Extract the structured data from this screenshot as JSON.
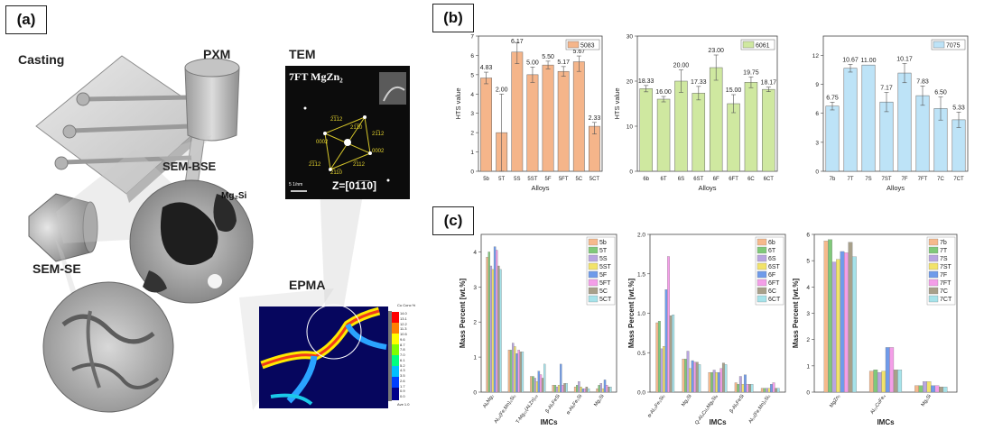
{
  "panel_labels": {
    "a": "(a)",
    "b": "(b)",
    "c": "(c)"
  },
  "panel_a": {
    "casting": "Casting",
    "pxm": "PXM",
    "tem": "TEM",
    "sem_bse": "SEM-BSE",
    "sem_se": "SEM-SE",
    "epma": "EPMA",
    "tem_title": "7FT MgZn₂",
    "tem_zone_axis": "Z=[01̅1̅0]",
    "tem_scale": "5 1/nm",
    "tem_spots": [
      "2̅1̅12",
      "21̅1̅0",
      "21̅12",
      "0002",
      "0002",
      "2̅1̅12",
      "2̅11̅0",
      "2̅112"
    ],
    "bse_phase": "Mg₂Si",
    "epma_colorbar_title": "Cu Conc %",
    "epma_colorbar_ticks": [
      "14.0",
      "13.1",
      "12.2",
      "11.3",
      "10.5",
      "9.6",
      "8.7",
      "7.8",
      "7.0",
      "6.1",
      "5.2",
      "4.3",
      "3.5",
      "2.6",
      "1.7",
      "0.9",
      "0.0"
    ],
    "epma_colorbar_avg": "Ave 1.0"
  },
  "chart_data": [
    {
      "type": "bar",
      "panel": "b",
      "legend": "5083",
      "color": "#f5b58a",
      "categories": [
        "5b",
        "5T",
        "5S",
        "5ST",
        "5F",
        "5FT",
        "5C",
        "5CT"
      ],
      "values": [
        4.83,
        2.0,
        6.17,
        5.0,
        5.5,
        5.17,
        5.67,
        2.33
      ],
      "value_labels": [
        "4.83",
        "2.00",
        "6.17",
        "5.00",
        "5.50",
        "5.17",
        "5.67",
        "2.33"
      ],
      "err_plus": [
        0.3,
        2.0,
        0.5,
        0.4,
        0.2,
        0.25,
        0.3,
        0.2
      ],
      "err_minus": [
        0.3,
        2.0,
        0.6,
        0.4,
        0.2,
        0.25,
        0.5,
        0.4
      ],
      "ylim": [
        0,
        7
      ],
      "yticks": [
        "0",
        "1",
        "2",
        "3",
        "4",
        "5",
        "6",
        "7"
      ],
      "ylabel": "HTS value",
      "xlabel": "Alloys"
    },
    {
      "type": "bar",
      "panel": "b",
      "legend": "6061",
      "color": "#cfe8a0",
      "categories": [
        "6b",
        "6T",
        "6S",
        "6ST",
        "6F",
        "6FT",
        "6C",
        "6CT"
      ],
      "values": [
        18.33,
        16.0,
        20.0,
        17.33,
        23.0,
        15.0,
        19.75,
        18.17
      ],
      "value_labels": [
        "18.33",
        "16.00",
        "20.00",
        "17.33",
        "23.00",
        "15.00",
        "19.75",
        "18.17"
      ],
      "err_plus": [
        0.7,
        0.6,
        2.5,
        1.5,
        2.8,
        2.0,
        1.2,
        0.5
      ],
      "err_minus": [
        0.7,
        0.6,
        2.5,
        1.5,
        2.8,
        2.0,
        1.2,
        0.5
      ],
      "ylim": [
        0,
        30
      ],
      "yticks": [
        "0",
        "10",
        "20",
        "30"
      ],
      "ylabel": "HTS value",
      "xlabel": "Alloys"
    },
    {
      "type": "bar",
      "panel": "b",
      "legend": "7075",
      "color": "#bde3f7",
      "categories": [
        "7b",
        "7T",
        "7S",
        "7ST",
        "7F",
        "7FT",
        "7C",
        "7CT"
      ],
      "values": [
        6.75,
        10.67,
        11.0,
        7.17,
        10.17,
        7.83,
        6.5,
        5.33
      ],
      "value_labels": [
        "6.75",
        "10.67",
        "11.00",
        "7.17",
        "10.17",
        "7.83",
        "6.50",
        "5.33"
      ],
      "err_plus": [
        0.4,
        0.4,
        0.0,
        1.0,
        1.0,
        1.0,
        1.2,
        0.8
      ],
      "err_minus": [
        0.4,
        0.4,
        0.0,
        1.0,
        1.0,
        1.0,
        1.2,
        0.8
      ],
      "ylim": [
        0,
        14
      ],
      "yticks": [
        "0",
        "3",
        "6",
        "9",
        "12"
      ],
      "ylabel": "",
      "xlabel": "Alloys"
    },
    {
      "type": "bar",
      "panel": "c",
      "categories": [
        "Al₆Mg₂",
        "Al₁₅(Fe,Mn)₃Si₂",
        "T-Mg₃₂(Al,Zn)₄₉",
        "β-Al₅FeSi",
        "α-Al₈Fe₂Si",
        "Mg₂Si"
      ],
      "series": [
        {
          "name": "5b",
          "values": [
            3.85,
            1.2,
            0.45,
            0.2,
            0.15,
            0.1
          ]
        },
        {
          "name": "5T",
          "values": [
            4.0,
            1.2,
            0.45,
            0.2,
            0.2,
            0.2
          ]
        },
        {
          "name": "5S",
          "values": [
            3.6,
            1.4,
            0.4,
            0.15,
            0.3,
            0.25
          ]
        },
        {
          "name": "5ST",
          "values": [
            3.5,
            1.3,
            0.3,
            0.2,
            0.15,
            0.1
          ]
        },
        {
          "name": "5F",
          "values": [
            4.15,
            1.1,
            0.6,
            0.8,
            0.1,
            0.35
          ]
        },
        {
          "name": "5FT",
          "values": [
            4.05,
            1.2,
            0.5,
            0.2,
            0.1,
            0.2
          ]
        },
        {
          "name": "5C",
          "values": [
            3.6,
            1.15,
            0.4,
            0.25,
            0.15,
            0.15
          ]
        },
        {
          "name": "5CT",
          "values": [
            3.5,
            1.15,
            0.8,
            0.25,
            0.1,
            0.15
          ]
        }
      ],
      "ylim": [
        0,
        4.5
      ],
      "yticks": [
        "0",
        "1",
        "2",
        "3",
        "4"
      ],
      "ylabel": "Mass Percent [wt.%]",
      "xlabel": "IMCs"
    },
    {
      "type": "bar",
      "panel": "c",
      "categories": [
        "α-Al₁₅Fe₃Si₂",
        "Mg₂Si",
        "Q-Al₃Cu₂Mg₈Si₆",
        "β-Al₅FeSi",
        "Al₁₅(Fe,Mn)₃Si₂"
      ],
      "series": [
        {
          "name": "6b",
          "values": [
            0.88,
            0.42,
            0.25,
            0.12,
            0.05
          ]
        },
        {
          "name": "6T",
          "values": [
            0.9,
            0.42,
            0.25,
            0.1,
            0.05
          ]
        },
        {
          "name": "6S",
          "values": [
            0.55,
            0.52,
            0.28,
            0.2,
            0.05
          ]
        },
        {
          "name": "6ST",
          "values": [
            0.58,
            0.3,
            0.25,
            0.1,
            0.05
          ]
        },
        {
          "name": "6F",
          "values": [
            1.3,
            0.4,
            0.25,
            0.22,
            0.1
          ]
        },
        {
          "name": "6FT",
          "values": [
            1.72,
            0.38,
            0.3,
            0.1,
            0.12
          ]
        },
        {
          "name": "6C",
          "values": [
            0.97,
            0.38,
            0.37,
            0.1,
            0.05
          ]
        },
        {
          "name": "6CT",
          "values": [
            0.98,
            0.35,
            0.35,
            0.1,
            0.05
          ]
        }
      ],
      "ylim": [
        0,
        2.0
      ],
      "yticks": [
        "0.0",
        "0.5",
        "1.0",
        "1.5",
        "2.0"
      ],
      "ylabel": "Mass Percent [wt.%]",
      "xlabel": "IMCs"
    },
    {
      "type": "bar",
      "panel": "c",
      "categories": [
        "MgZn₂",
        "Al₂₃CuFe₄",
        "Mg₂Si"
      ],
      "series": [
        {
          "name": "7b",
          "values": [
            5.75,
            0.8,
            0.25
          ]
        },
        {
          "name": "7T",
          "values": [
            5.8,
            0.85,
            0.25
          ]
        },
        {
          "name": "7S",
          "values": [
            4.95,
            0.75,
            0.4
          ]
        },
        {
          "name": "7ST",
          "values": [
            5.05,
            0.8,
            0.4
          ]
        },
        {
          "name": "7F",
          "values": [
            5.35,
            1.7,
            0.25
          ]
        },
        {
          "name": "7FT",
          "values": [
            5.3,
            1.7,
            0.25
          ]
        },
        {
          "name": "7C",
          "values": [
            5.7,
            0.85,
            0.2
          ]
        },
        {
          "name": "7CT",
          "values": [
            5.15,
            0.85,
            0.2
          ]
        }
      ],
      "ylim": [
        0,
        6
      ],
      "yticks": [
        "0",
        "1",
        "2",
        "3",
        "4",
        "5",
        "6"
      ],
      "ylabel": "Mass Percent [wt.%]",
      "xlabel": "IMCs"
    }
  ],
  "c_series_colors": [
    "#f6b98c",
    "#80c97a",
    "#b9a5e0",
    "#f2e36a",
    "#6f9bea",
    "#f49ee8",
    "#a8a08a",
    "#a6e3ea"
  ]
}
